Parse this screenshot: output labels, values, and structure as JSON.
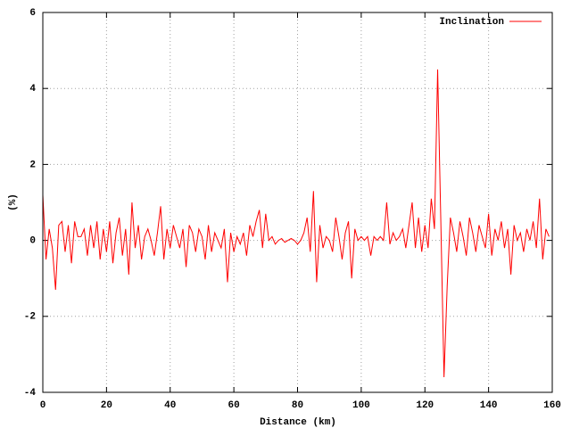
{
  "chart_data": {
    "type": "line",
    "xlabel": "Distance (km)",
    "ylabel": "(%)",
    "x": [
      0,
      1,
      2,
      3,
      4,
      5,
      6,
      7,
      8,
      9,
      10,
      11,
      12,
      13,
      14,
      15,
      16,
      17,
      18,
      19,
      20,
      21,
      22,
      23,
      24,
      25,
      26,
      27,
      28,
      29,
      30,
      31,
      32,
      33,
      34,
      35,
      36,
      37,
      38,
      39,
      40,
      41,
      42,
      43,
      44,
      45,
      46,
      47,
      48,
      49,
      50,
      51,
      52,
      53,
      54,
      55,
      56,
      57,
      58,
      59,
      60,
      61,
      62,
      63,
      64,
      65,
      66,
      67,
      68,
      69,
      70,
      71,
      72,
      73,
      74,
      75,
      76,
      77,
      78,
      79,
      80,
      81,
      82,
      83,
      84,
      85,
      86,
      87,
      88,
      89,
      90,
      91,
      92,
      93,
      94,
      95,
      96,
      97,
      98,
      99,
      100,
      101,
      102,
      103,
      104,
      105,
      106,
      107,
      108,
      109,
      110,
      111,
      112,
      113,
      114,
      115,
      116,
      117,
      118,
      119,
      120,
      121,
      122,
      123,
      124,
      125,
      126,
      127,
      128,
      129,
      130,
      131,
      132,
      133,
      134,
      135,
      136,
      137,
      138,
      139,
      140,
      141,
      142,
      143,
      144,
      145,
      146,
      147,
      148,
      149,
      150,
      151,
      152,
      153,
      154,
      155,
      156,
      157,
      158,
      159
    ],
    "series": [
      {
        "name": "Inclination",
        "color": "#ff0000",
        "values": [
          1.2,
          -0.5,
          0.3,
          -0.2,
          -1.3,
          0.4,
          0.5,
          -0.3,
          0.4,
          -0.6,
          0.5,
          0.1,
          0.1,
          0.3,
          -0.4,
          0.4,
          -0.2,
          0.5,
          -0.5,
          0.3,
          -0.3,
          0.5,
          -0.6,
          0.2,
          0.6,
          -0.4,
          0.3,
          -0.9,
          1.0,
          -0.2,
          0.4,
          -0.5,
          0.1,
          0.3,
          0.0,
          -0.4,
          0.2,
          0.9,
          -0.5,
          0.3,
          -0.2,
          0.4,
          0.1,
          -0.2,
          0.3,
          -0.7,
          0.4,
          0.2,
          -0.3,
          0.3,
          0.1,
          -0.5,
          0.4,
          -0.3,
          0.2,
          0.0,
          -0.2,
          0.3,
          -1.1,
          0.2,
          -0.3,
          0.1,
          -0.1,
          0.2,
          -0.4,
          0.4,
          0.1,
          0.5,
          0.8,
          -0.2,
          0.7,
          0.0,
          0.1,
          -0.1,
          0.0,
          0.05,
          -0.05,
          0.0,
          0.05,
          0.0,
          -0.1,
          0.0,
          0.2,
          0.6,
          -0.3,
          1.3,
          -1.1,
          0.4,
          -0.2,
          0.1,
          0.0,
          -0.3,
          0.6,
          0.1,
          -0.5,
          0.2,
          0.5,
          -1.0,
          0.3,
          0.0,
          0.1,
          0.0,
          0.1,
          -0.4,
          0.1,
          0.0,
          0.1,
          0.0,
          1.0,
          -0.1,
          0.2,
          0.0,
          0.1,
          0.3,
          -0.2,
          0.4,
          1.0,
          -0.2,
          0.6,
          -0.3,
          0.4,
          -0.2,
          1.1,
          0.3,
          4.5,
          0.5,
          -3.6,
          -1.2,
          0.6,
          0.2,
          -0.3,
          0.5,
          0.1,
          -0.4,
          0.6,
          0.2,
          -0.3,
          0.4,
          0.1,
          -0.2,
          0.7,
          -0.4,
          0.3,
          0.0,
          0.5,
          -0.2,
          0.3,
          -0.9,
          0.4,
          0.0,
          0.2,
          -0.3,
          0.3,
          0.0,
          0.5,
          -0.2,
          1.1,
          -0.5,
          0.3,
          0.1
        ]
      }
    ],
    "xlim": [
      0,
      160
    ],
    "ylim": [
      -4,
      6
    ],
    "xticks": [
      0,
      20,
      40,
      60,
      80,
      100,
      120,
      140,
      160
    ],
    "yticks": [
      -4,
      -2,
      0,
      2,
      4,
      6
    ],
    "grid": true,
    "legend": "top-right"
  }
}
